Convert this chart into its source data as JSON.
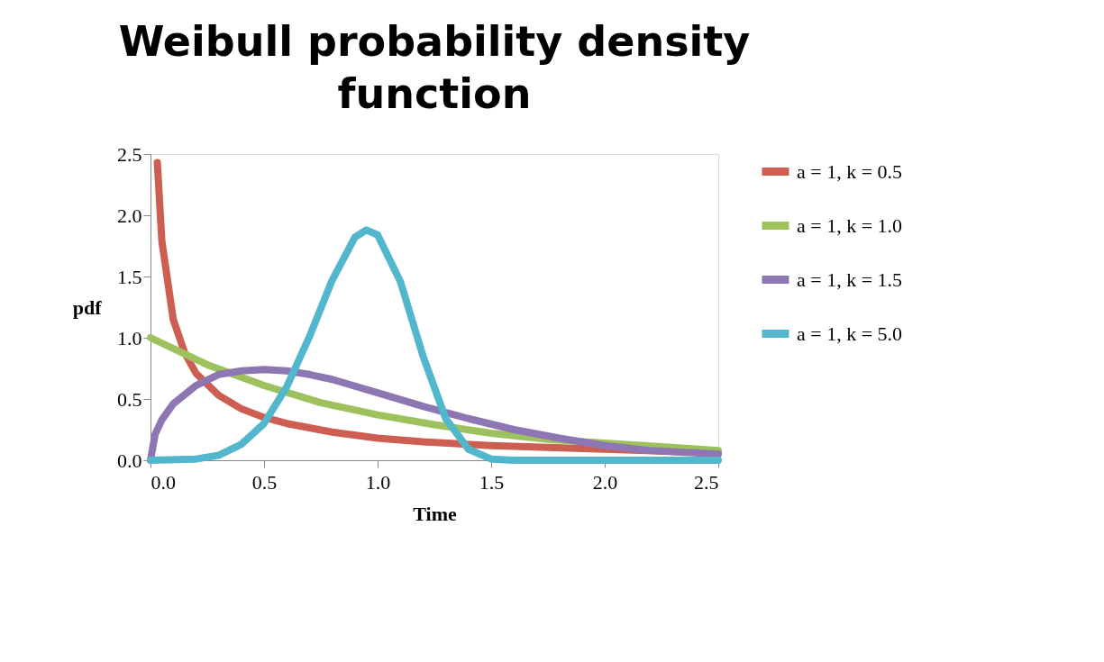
{
  "chart_data": {
    "type": "line",
    "title": "Weibull probability density function",
    "xlabel": "Time",
    "ylabel": "pdf",
    "xlim": [
      0,
      2.5
    ],
    "ylim": [
      0,
      2.5
    ],
    "xticks": [
      {
        "value": 0,
        "label": "0.0"
      },
      {
        "value": 0.5,
        "label": "0.5"
      },
      {
        "value": 1,
        "label": "1.0"
      },
      {
        "value": 1.5,
        "label": "1.5"
      },
      {
        "value": 2,
        "label": "2.0"
      },
      {
        "value": 2.5,
        "label": "2.5"
      }
    ],
    "yticks": [
      {
        "value": 0,
        "label": "0.0"
      },
      {
        "value": 0.5,
        "label": "0.5"
      },
      {
        "value": 1,
        "label": "1.0"
      },
      {
        "value": 1.5,
        "label": "1.5"
      },
      {
        "value": 2,
        "label": "2.0"
      },
      {
        "value": 2.5,
        "label": "2.5"
      }
    ],
    "grid": false,
    "legend": "right",
    "marker": "none",
    "line_style": "solid",
    "series": [
      {
        "name": "a = 1, k = 0.5",
        "color": "#cd5f52",
        "x": [
          0.03,
          0.05,
          0.1,
          0.15,
          0.2,
          0.3,
          0.4,
          0.5,
          0.6,
          0.8,
          1.0,
          1.2,
          1.5,
          2.0,
          2.5
        ],
        "values": [
          2.43,
          1.79,
          1.15,
          0.88,
          0.71,
          0.53,
          0.42,
          0.35,
          0.3,
          0.23,
          0.18,
          0.15,
          0.12,
          0.09,
          0.06
        ]
      },
      {
        "name": "a = 1, k = 1.0",
        "color": "#9dc25d",
        "x": [
          0,
          0.25,
          0.5,
          0.75,
          1.0,
          1.25,
          1.5,
          1.75,
          2.0,
          2.25,
          2.5
        ],
        "values": [
          1.0,
          0.78,
          0.61,
          0.47,
          0.37,
          0.29,
          0.22,
          0.17,
          0.14,
          0.11,
          0.08
        ]
      },
      {
        "name": "a = 1, k = 1.5",
        "color": "#8e76b2",
        "x": [
          0,
          0.02,
          0.05,
          0.1,
          0.2,
          0.3,
          0.4,
          0.5,
          0.6,
          0.7,
          0.8,
          1.0,
          1.2,
          1.4,
          1.6,
          1.8,
          2.0,
          2.2,
          2.5
        ],
        "values": [
          0,
          0.21,
          0.33,
          0.46,
          0.61,
          0.7,
          0.73,
          0.74,
          0.73,
          0.7,
          0.66,
          0.55,
          0.44,
          0.34,
          0.25,
          0.18,
          0.12,
          0.08,
          0.05
        ]
      },
      {
        "name": "a = 1, k = 5.0",
        "color": "#52b6cd",
        "x": [
          0,
          0.2,
          0.3,
          0.4,
          0.5,
          0.6,
          0.7,
          0.8,
          0.9,
          0.95,
          1.0,
          1.1,
          1.2,
          1.3,
          1.4,
          1.5,
          1.6,
          2.5
        ],
        "values": [
          0,
          0.01,
          0.04,
          0.13,
          0.3,
          0.6,
          1.01,
          1.47,
          1.82,
          1.88,
          1.84,
          1.46,
          0.85,
          0.34,
          0.09,
          0.01,
          0,
          0
        ]
      }
    ]
  }
}
